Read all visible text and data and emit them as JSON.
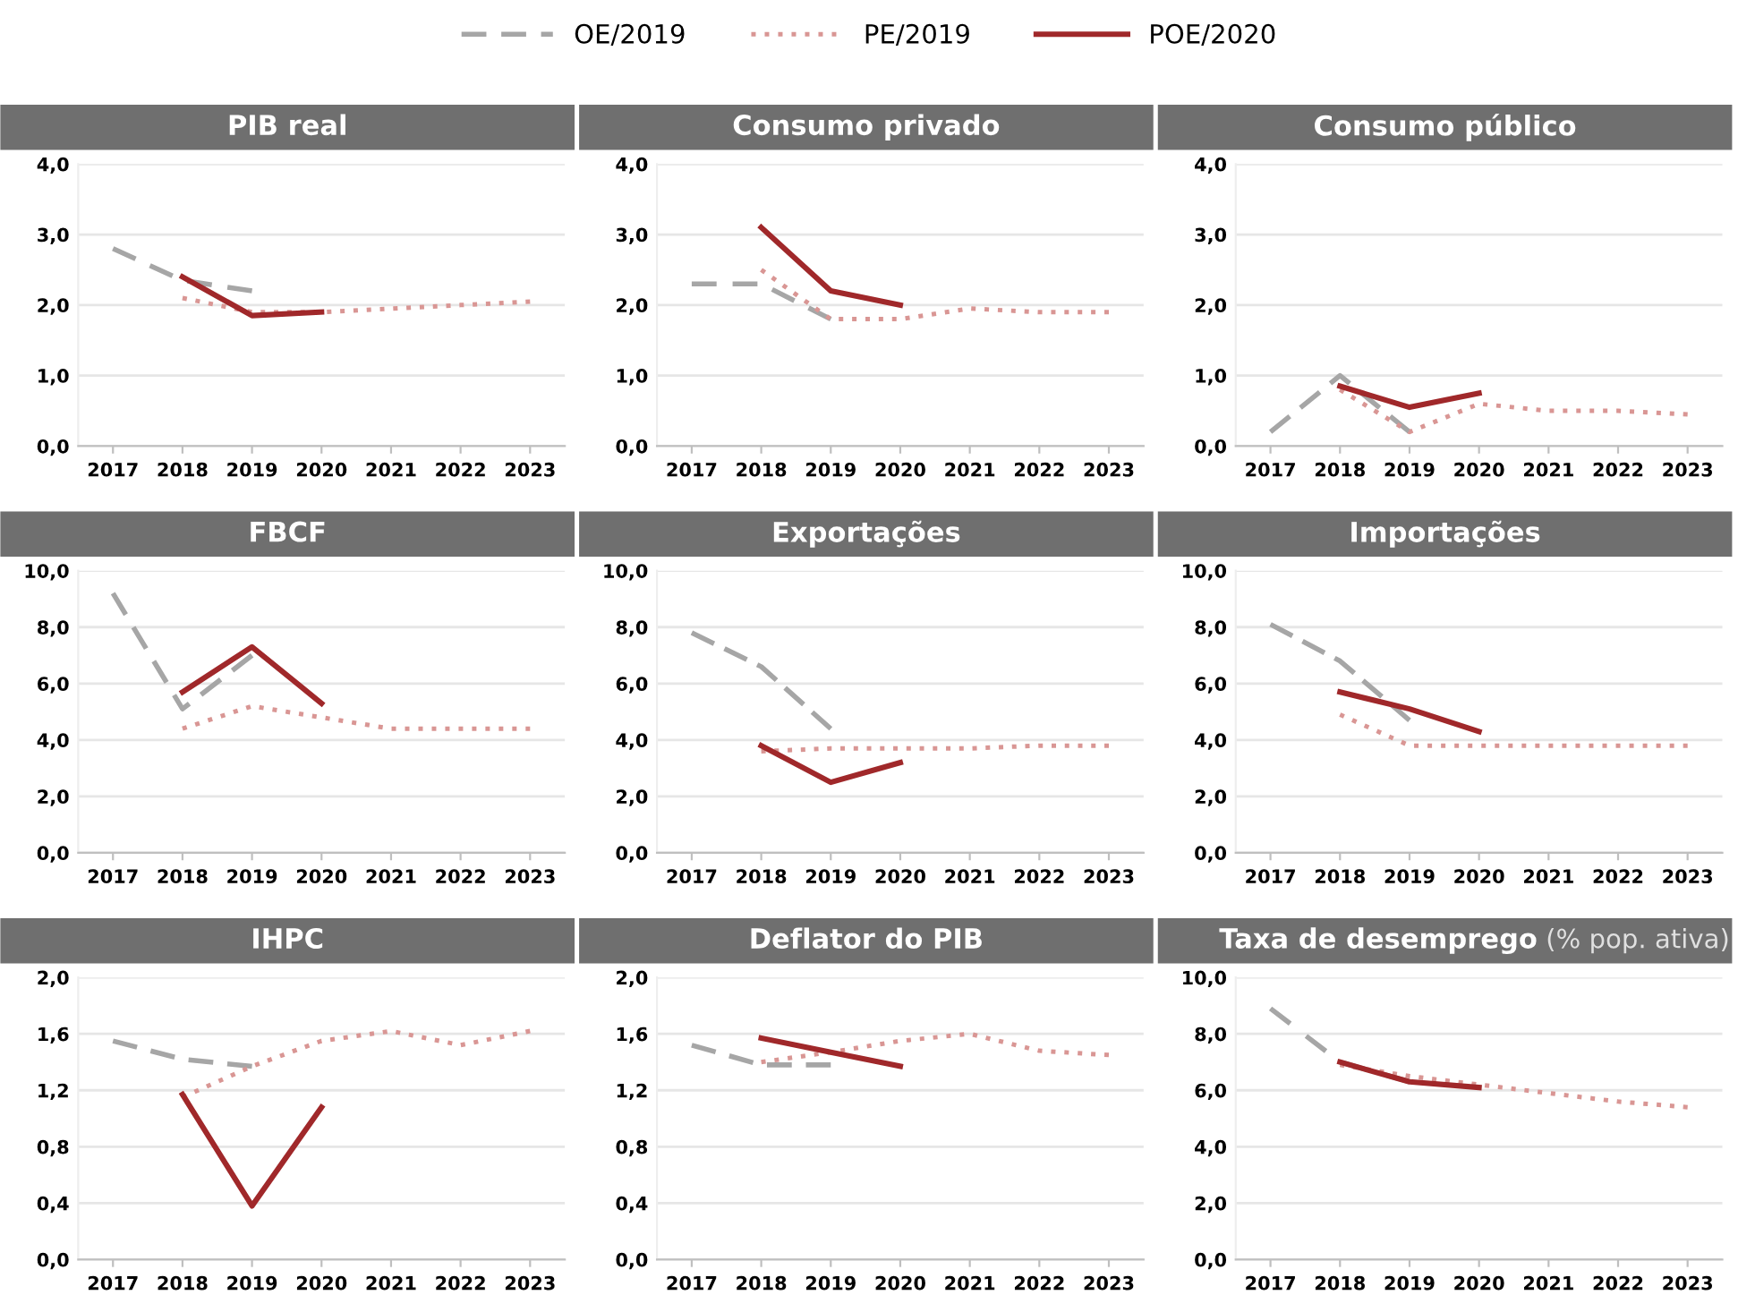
{
  "chart_data": [
    {
      "type": "line",
      "title": "PIB real",
      "categories": [
        "2017",
        "2018",
        "2019",
        "2020",
        "2021",
        "2022",
        "2023"
      ],
      "ylim": [
        0,
        4
      ],
      "yticks": [
        {
          "value": 0,
          "label": "0,0"
        },
        {
          "value": 1,
          "label": "1,0"
        },
        {
          "value": 2,
          "label": "2,0"
        },
        {
          "value": 3,
          "label": "3,0"
        },
        {
          "value": 4,
          "label": "4,0"
        }
      ],
      "grid": "y",
      "legend": "top",
      "series": [
        {
          "name": "OE/2019",
          "color": "#a6a6a6",
          "line_style": "dashed",
          "values": [
            2.8,
            2.35,
            2.2,
            null,
            null,
            null,
            null
          ]
        },
        {
          "name": "PE/2019",
          "color": "#d99694",
          "line_style": "dotted",
          "values": [
            null,
            2.1,
            1.9,
            1.9,
            1.95,
            2.0,
            2.05
          ]
        },
        {
          "name": "POE/2020",
          "color": "#a0282a",
          "line_style": "solid",
          "values": [
            null,
            2.4,
            1.85,
            1.9,
            null,
            null,
            null
          ]
        }
      ]
    },
    {
      "type": "line",
      "title": "Consumo privado",
      "categories": [
        "2017",
        "2018",
        "2019",
        "2020",
        "2021",
        "2022",
        "2023"
      ],
      "ylim": [
        0,
        4
      ],
      "yticks": [
        {
          "value": 0,
          "label": "0,0"
        },
        {
          "value": 1,
          "label": "1,0"
        },
        {
          "value": 2,
          "label": "2,0"
        },
        {
          "value": 3,
          "label": "3,0"
        },
        {
          "value": 4,
          "label": "4,0"
        }
      ],
      "grid": "y",
      "series": [
        {
          "color": "#a6a6a6",
          "line_style": "dashed",
          "values": [
            2.3,
            2.3,
            1.8,
            null,
            null,
            null,
            null
          ]
        },
        {
          "color": "#d99694",
          "line_style": "dotted",
          "values": [
            null,
            2.5,
            1.8,
            1.8,
            1.95,
            1.9,
            1.9
          ]
        },
        {
          "color": "#a0282a",
          "line_style": "solid",
          "values": [
            null,
            3.1,
            2.2,
            2.0,
            null,
            null,
            null
          ]
        }
      ]
    },
    {
      "type": "line",
      "title": "Consumo público",
      "categories": [
        "2017",
        "2018",
        "2019",
        "2020",
        "2021",
        "2022",
        "2023"
      ],
      "ylim": [
        0,
        4
      ],
      "yticks": [
        {
          "value": 0,
          "label": "0,0"
        },
        {
          "value": 1,
          "label": "1,0"
        },
        {
          "value": 2,
          "label": "2,0"
        },
        {
          "value": 3,
          "label": "3,0"
        },
        {
          "value": 4,
          "label": "4,0"
        }
      ],
      "grid": "y",
      "series": [
        {
          "color": "#a6a6a6",
          "line_style": "dashed",
          "values": [
            0.2,
            1.0,
            0.2,
            null,
            null,
            null,
            null
          ]
        },
        {
          "color": "#d99694",
          "line_style": "dotted",
          "values": [
            null,
            0.8,
            0.2,
            0.6,
            0.5,
            0.5,
            0.45
          ]
        },
        {
          "color": "#a0282a",
          "line_style": "solid",
          "values": [
            null,
            0.85,
            0.55,
            0.75,
            null,
            null,
            null
          ]
        }
      ]
    },
    {
      "type": "line",
      "title": "FBCF",
      "categories": [
        "2017",
        "2018",
        "2019",
        "2020",
        "2021",
        "2022",
        "2023"
      ],
      "ylim": [
        0,
        10
      ],
      "yticks": [
        {
          "value": 0,
          "label": "0,0"
        },
        {
          "value": 2,
          "label": "2,0"
        },
        {
          "value": 4,
          "label": "4,0"
        },
        {
          "value": 6,
          "label": "6,0"
        },
        {
          "value": 8,
          "label": "8,0"
        },
        {
          "value": 10,
          "label": "10,0"
        }
      ],
      "grid": "y",
      "series": [
        {
          "color": "#a6a6a6",
          "line_style": "dashed",
          "values": [
            9.2,
            5.1,
            7.0,
            null,
            null,
            null,
            null
          ]
        },
        {
          "color": "#d99694",
          "line_style": "dotted",
          "values": [
            null,
            4.4,
            5.2,
            4.8,
            4.4,
            4.4,
            4.4
          ]
        },
        {
          "color": "#a0282a",
          "line_style": "solid",
          "values": [
            null,
            5.7,
            7.3,
            5.3,
            null,
            null,
            null
          ]
        }
      ]
    },
    {
      "type": "line",
      "title": "Exportações",
      "categories": [
        "2017",
        "2018",
        "2019",
        "2020",
        "2021",
        "2022",
        "2023"
      ],
      "ylim": [
        0,
        10
      ],
      "yticks": [
        {
          "value": 0,
          "label": "0,0"
        },
        {
          "value": 2,
          "label": "2,0"
        },
        {
          "value": 4,
          "label": "4,0"
        },
        {
          "value": 6,
          "label": "6,0"
        },
        {
          "value": 8,
          "label": "8,0"
        },
        {
          "value": 10,
          "label": "10,0"
        }
      ],
      "grid": "y",
      "series": [
        {
          "color": "#a6a6a6",
          "line_style": "dashed",
          "values": [
            7.8,
            6.6,
            4.4,
            null,
            null,
            null,
            null
          ]
        },
        {
          "color": "#d99694",
          "line_style": "dotted",
          "values": [
            null,
            3.6,
            3.7,
            3.7,
            3.7,
            3.8,
            3.8
          ]
        },
        {
          "color": "#a0282a",
          "line_style": "solid",
          "values": [
            null,
            3.8,
            2.5,
            3.2,
            null,
            null,
            null
          ]
        }
      ]
    },
    {
      "type": "line",
      "title": "Importações",
      "categories": [
        "2017",
        "2018",
        "2019",
        "2020",
        "2021",
        "2022",
        "2023"
      ],
      "ylim": [
        0,
        10
      ],
      "yticks": [
        {
          "value": 0,
          "label": "0,0"
        },
        {
          "value": 2,
          "label": "2,0"
        },
        {
          "value": 4,
          "label": "4,0"
        },
        {
          "value": 6,
          "label": "6,0"
        },
        {
          "value": 8,
          "label": "8,0"
        },
        {
          "value": 10,
          "label": "10,0"
        }
      ],
      "grid": "y",
      "series": [
        {
          "color": "#a6a6a6",
          "line_style": "dashed",
          "values": [
            8.1,
            6.8,
            4.7,
            null,
            null,
            null,
            null
          ]
        },
        {
          "color": "#d99694",
          "line_style": "dotted",
          "values": [
            null,
            4.9,
            3.8,
            3.8,
            3.8,
            3.8,
            3.8
          ]
        },
        {
          "color": "#a0282a",
          "line_style": "solid",
          "values": [
            null,
            5.7,
            5.1,
            4.3,
            null,
            null,
            null
          ]
        }
      ]
    },
    {
      "type": "line",
      "title": "IHPC",
      "categories": [
        "2017",
        "2018",
        "2019",
        "2020",
        "2021",
        "2022",
        "2023"
      ],
      "ylim": [
        0,
        2
      ],
      "yticks": [
        {
          "value": 0,
          "label": "0,0"
        },
        {
          "value": 0.4,
          "label": "0,4"
        },
        {
          "value": 0.8,
          "label": "0,8"
        },
        {
          "value": 1.2,
          "label": "1,2"
        },
        {
          "value": 1.6,
          "label": "1,6"
        },
        {
          "value": 2,
          "label": "2,0"
        }
      ],
      "grid": "y",
      "series": [
        {
          "color": "#a6a6a6",
          "line_style": "dashed",
          "values": [
            1.55,
            1.42,
            1.37,
            null,
            null,
            null,
            null
          ]
        },
        {
          "color": "#d99694",
          "line_style": "dotted",
          "values": [
            null,
            1.15,
            1.37,
            1.55,
            1.62,
            1.52,
            1.62
          ]
        },
        {
          "color": "#a0282a",
          "line_style": "solid",
          "values": [
            null,
            1.17,
            0.38,
            1.08,
            null,
            null,
            null
          ]
        }
      ]
    },
    {
      "type": "line",
      "title": "Deflator do PIB",
      "categories": [
        "2017",
        "2018",
        "2019",
        "2020",
        "2021",
        "2022",
        "2023"
      ],
      "ylim": [
        0,
        2
      ],
      "yticks": [
        {
          "value": 0,
          "label": "0,0"
        },
        {
          "value": 0.4,
          "label": "0,4"
        },
        {
          "value": 0.8,
          "label": "0,8"
        },
        {
          "value": 1.2,
          "label": "1,2"
        },
        {
          "value": 1.6,
          "label": "1,6"
        },
        {
          "value": 2,
          "label": "2,0"
        }
      ],
      "grid": "y",
      "series": [
        {
          "color": "#a6a6a6",
          "line_style": "dashed",
          "values": [
            1.52,
            1.38,
            1.38,
            null,
            null,
            null,
            null
          ]
        },
        {
          "color": "#d99694",
          "line_style": "dotted",
          "values": [
            null,
            1.4,
            1.47,
            1.55,
            1.6,
            1.48,
            1.45
          ]
        },
        {
          "color": "#a0282a",
          "line_style": "solid",
          "values": [
            null,
            1.57,
            1.47,
            1.37,
            null,
            null,
            null
          ]
        }
      ]
    },
    {
      "type": "line",
      "title": "Taxa de desemprego",
      "subtitle": "(% pop. ativa)",
      "categories": [
        "2017",
        "2018",
        "2019",
        "2020",
        "2021",
        "2022",
        "2023"
      ],
      "ylim": [
        0,
        10
      ],
      "yticks": [
        {
          "value": 0,
          "label": "0,0"
        },
        {
          "value": 2,
          "label": "2,0"
        },
        {
          "value": 4,
          "label": "4,0"
        },
        {
          "value": 6,
          "label": "6,0"
        },
        {
          "value": 8,
          "label": "8,0"
        },
        {
          "value": 10,
          "label": "10,0"
        }
      ],
      "grid": "y",
      "series": [
        {
          "color": "#a6a6a6",
          "line_style": "dashed",
          "values": [
            8.9,
            7.0,
            6.3,
            null,
            null,
            null,
            null
          ]
        },
        {
          "color": "#d99694",
          "line_style": "dotted",
          "values": [
            null,
            6.9,
            6.5,
            6.2,
            5.9,
            5.6,
            5.4
          ]
        },
        {
          "color": "#a0282a",
          "line_style": "solid",
          "values": [
            null,
            7.0,
            6.3,
            6.1,
            null,
            null,
            null
          ]
        }
      ]
    }
  ]
}
